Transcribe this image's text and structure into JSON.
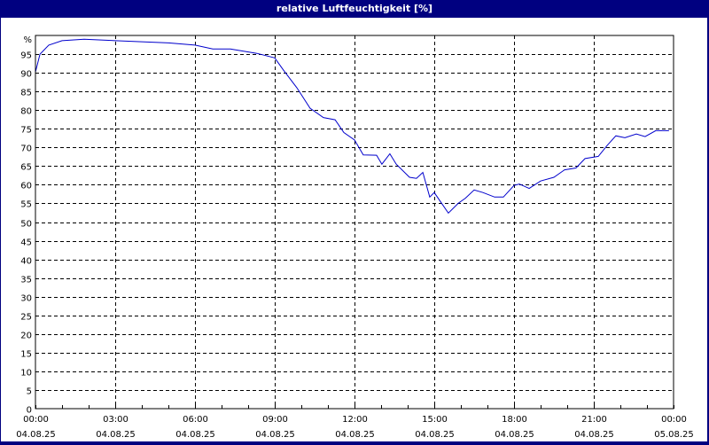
{
  "window": {
    "title": "relative Luftfeuchtigkeit [%]",
    "frame_color": "#000080",
    "line_color": "#0000cc"
  },
  "chart_data": {
    "type": "line",
    "title": "relative Luftfeuchtigkeit [%]",
    "xlabel": "",
    "ylabel": "%",
    "ylim": [
      0,
      100
    ],
    "xlim_hours": [
      0,
      24
    ],
    "grid": true,
    "grid_style": "dashed",
    "legend": null,
    "y_ticks": [
      0,
      5,
      10,
      15,
      20,
      25,
      30,
      35,
      40,
      45,
      50,
      55,
      60,
      65,
      70,
      75,
      80,
      85,
      90,
      95
    ],
    "y_top_label": "%",
    "x_ticks": [
      {
        "time": "00:00",
        "date": "04.08.25"
      },
      {
        "time": "03:00",
        "date": "04.08.25"
      },
      {
        "time": "06:00",
        "date": "04.08.25"
      },
      {
        "time": "09:00",
        "date": "04.08.25"
      },
      {
        "time": "12:00",
        "date": "04.08.25"
      },
      {
        "time": "15:00",
        "date": "04.08.25"
      },
      {
        "time": "18:00",
        "date": "04.08.25"
      },
      {
        "time": "21:00",
        "date": "04.08.25"
      },
      {
        "time": "00:00",
        "date": "05.08.25"
      }
    ],
    "series": [
      {
        "name": "relative Luftfeuchtigkeit",
        "x_hours": [
          0.0,
          0.17,
          0.5,
          1.0,
          1.83,
          3.0,
          5.0,
          6.0,
          6.67,
          7.33,
          8.33,
          9.0,
          9.33,
          9.83,
          10.33,
          10.83,
          11.27,
          11.6,
          12.0,
          12.33,
          12.83,
          13.03,
          13.33,
          13.57,
          14.07,
          14.33,
          14.57,
          14.83,
          15.0,
          15.23,
          15.53,
          15.9,
          16.17,
          16.5,
          16.83,
          17.27,
          17.6,
          18.0,
          18.2,
          18.57,
          19.0,
          19.5,
          19.9,
          20.33,
          20.67,
          21.17,
          21.5,
          21.83,
          22.17,
          22.6,
          22.93,
          23.33,
          23.83
        ],
        "values": [
          90.2,
          95.0,
          97.4,
          98.6,
          99.0,
          98.6,
          98.0,
          97.4,
          96.4,
          96.4,
          95.2,
          94.0,
          90.7,
          86.0,
          80.5,
          78.0,
          77.4,
          74.0,
          72.0,
          68.0,
          67.9,
          65.5,
          68.3,
          65.5,
          62.0,
          61.7,
          63.3,
          56.7,
          57.9,
          55.5,
          52.4,
          55.0,
          56.4,
          58.6,
          57.9,
          56.7,
          56.7,
          59.8,
          60.2,
          59.0,
          61.0,
          62.0,
          64.0,
          64.5,
          67.0,
          67.6,
          70.5,
          73.1,
          72.6,
          73.6,
          72.9,
          74.5,
          74.5
        ]
      }
    ]
  }
}
